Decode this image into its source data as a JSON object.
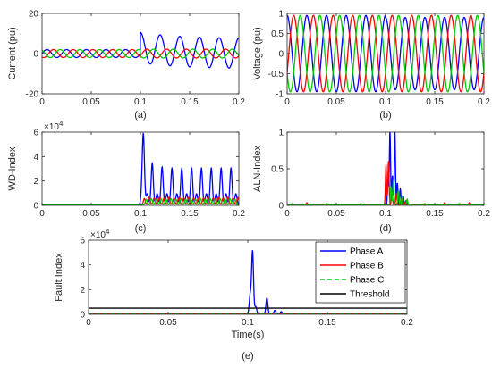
{
  "chart_data": [
    {
      "id": "a",
      "type": "line",
      "caption": "(a)",
      "xlabel": "",
      "ylabel": "Current (pu)",
      "xlim": [
        0,
        0.2
      ],
      "ylim": [
        -20,
        20
      ],
      "xticks": [
        0,
        0.05,
        0.1,
        0.15,
        0.2
      ],
      "yticks": [
        -20,
        0,
        20
      ],
      "xtick_labels": [
        "0",
        "0.05",
        "0.1",
        "0.15",
        "0.2"
      ],
      "ytick_labels": [
        "-20",
        "0",
        "20"
      ],
      "y_exponent": "",
      "series": [
        {
          "color": "#0000ff",
          "pre": {
            "amp": 2,
            "freq": 50,
            "phase": 0
          },
          "post": {
            "start": 0.1,
            "amp": 7.5,
            "freq": 50,
            "phase": 90,
            "offset": 3,
            "offset_decay": 0.04
          }
        },
        {
          "color": "#ff0000",
          "pre": {
            "amp": 2,
            "freq": 50,
            "phase": -120
          },
          "post": {
            "start": 0.1,
            "amp": 2.2,
            "freq": 50,
            "phase": -30,
            "offset": 0
          }
        },
        {
          "color": "#00cc00",
          "pre": {
            "amp": 2,
            "freq": 50,
            "phase": 120
          },
          "post": {
            "start": 0.1,
            "amp": 2.2,
            "freq": 50,
            "phase": 210,
            "offset": 0
          }
        }
      ]
    },
    {
      "id": "b",
      "type": "line",
      "caption": "(b)",
      "xlabel": "",
      "ylabel": "Voltage (pu)",
      "xlim": [
        0,
        0.2
      ],
      "ylim": [
        -1,
        1
      ],
      "xticks": [
        0,
        0.05,
        0.1,
        0.15,
        0.2
      ],
      "yticks": [
        -1,
        -0.5,
        0,
        0.5,
        1
      ],
      "xtick_labels": [
        "0",
        "0.05",
        "0.1",
        "0.15",
        "0.2"
      ],
      "ytick_labels": [
        "-1",
        "-0.5",
        "0",
        "0.5",
        "1"
      ],
      "y_exponent": "",
      "series": [
        {
          "color": "#0000ff",
          "pre": {
            "amp": 0.95,
            "freq": 50,
            "phase": 90
          },
          "post": {
            "start": 0.1,
            "amp": 0.9,
            "freq": 50,
            "phase": 90,
            "offset": 0
          }
        },
        {
          "color": "#ff0000",
          "pre": {
            "amp": 0.95,
            "freq": 50,
            "phase": -30
          },
          "post": {
            "start": 0.1,
            "amp": 0.95,
            "freq": 50,
            "phase": -30,
            "offset": 0
          }
        },
        {
          "color": "#00cc00",
          "pre": {
            "amp": 0.95,
            "freq": 50,
            "phase": 210
          },
          "post": {
            "start": 0.1,
            "amp": 0.95,
            "freq": 50,
            "phase": 210,
            "offset": 0
          }
        }
      ]
    },
    {
      "id": "c",
      "type": "line",
      "caption": "(c)",
      "xlabel": "",
      "ylabel": "WD-Index",
      "xlim": [
        0,
        0.2
      ],
      "ylim": [
        0,
        60000
      ],
      "xticks": [
        0,
        0.05,
        0.1,
        0.15,
        0.2
      ],
      "yticks": [
        0,
        20000,
        40000,
        60000
      ],
      "xtick_labels": [
        "0",
        "0.05",
        "0.1",
        "0.15",
        "0.2"
      ],
      "ytick_labels": [
        "0",
        "2",
        "4",
        "6"
      ],
      "y_exponent": "×10^4",
      "series": [
        {
          "color": "#0000ff",
          "baseline": 500,
          "peaks": [
            [
              0.1015,
              8000
            ],
            [
              0.103,
              55000
            ],
            [
              0.107,
              9000
            ],
            [
              0.112,
              34000
            ],
            [
              0.117,
              9000
            ],
            [
              0.122,
              31000
            ],
            [
              0.127,
              9000
            ],
            [
              0.132,
              30000
            ],
            [
              0.137,
              9000
            ],
            [
              0.142,
              30000
            ],
            [
              0.147,
              9000
            ],
            [
              0.152,
              30000
            ],
            [
              0.157,
              9000
            ],
            [
              0.162,
              30000
            ],
            [
              0.167,
              9000
            ],
            [
              0.172,
              30000
            ],
            [
              0.177,
              9000
            ],
            [
              0.182,
              30000
            ],
            [
              0.187,
              9000
            ],
            [
              0.192,
              30000
            ],
            [
              0.197,
              9000
            ]
          ],
          "width": 0.0011
        },
        {
          "color": "#ff0000",
          "baseline": 500,
          "peaks": [
            [
              0.104,
              5000
            ],
            [
              0.109,
              6000
            ],
            [
              0.114,
              5500
            ],
            [
              0.119,
              6000
            ],
            [
              0.124,
              5500
            ],
            [
              0.129,
              6000
            ],
            [
              0.134,
              5500
            ],
            [
              0.139,
              6000
            ],
            [
              0.144,
              5500
            ],
            [
              0.149,
              6000
            ],
            [
              0.154,
              5500
            ],
            [
              0.159,
              6000
            ],
            [
              0.164,
              5500
            ],
            [
              0.169,
              6000
            ],
            [
              0.174,
              5500
            ],
            [
              0.179,
              6000
            ],
            [
              0.184,
              5500
            ],
            [
              0.189,
              6000
            ],
            [
              0.194,
              5500
            ],
            [
              0.199,
              6000
            ]
          ],
          "width": 0.001
        },
        {
          "color": "#00cc00",
          "baseline": 500,
          "peaks": [
            [
              0.106,
              4500
            ],
            [
              0.111,
              5000
            ],
            [
              0.116,
              4500
            ],
            [
              0.121,
              5000
            ],
            [
              0.126,
              4500
            ],
            [
              0.131,
              5000
            ],
            [
              0.136,
              4500
            ],
            [
              0.141,
              5000
            ],
            [
              0.146,
              4500
            ],
            [
              0.151,
              5000
            ],
            [
              0.156,
              4500
            ],
            [
              0.161,
              5000
            ],
            [
              0.166,
              4500
            ],
            [
              0.171,
              5000
            ],
            [
              0.176,
              4500
            ],
            [
              0.181,
              5000
            ],
            [
              0.186,
              4500
            ],
            [
              0.191,
              5000
            ],
            [
              0.196,
              4500
            ]
          ],
          "width": 0.001
        }
      ]
    },
    {
      "id": "d",
      "type": "line",
      "caption": "(d)",
      "xlabel": "",
      "ylabel": "ALN-Index",
      "xlim": [
        0,
        0.2
      ],
      "ylim": [
        0,
        1
      ],
      "xticks": [
        0,
        0.05,
        0.1,
        0.15,
        0.2
      ],
      "yticks": [
        0,
        0.5,
        1
      ],
      "xtick_labels": [
        "0",
        "0.05",
        "0.1",
        "0.15",
        "0.2"
      ],
      "ytick_labels": [
        "0",
        "0.5",
        "1"
      ],
      "y_exponent": "",
      "series": [
        {
          "color": "#0000ff",
          "baseline": 0.005,
          "peaks": [
            [
              0.1025,
              0.35
            ],
            [
              0.1045,
              1.0
            ],
            [
              0.107,
              0.4
            ],
            [
              0.1095,
              1.0
            ],
            [
              0.112,
              0.3
            ],
            [
              0.115,
              0.22
            ],
            [
              0.118,
              0.12
            ],
            [
              0.121,
              0.06
            ]
          ],
          "width": 0.0006
        },
        {
          "color": "#ff0000",
          "baseline": 0.005,
          "peaks": [
            [
              0.1005,
              0.55
            ],
            [
              0.103,
              0.6
            ],
            [
              0.1065,
              0.18
            ],
            [
              0.111,
              0.15
            ],
            [
              0.116,
              0.08
            ],
            [
              0.02,
              0.03
            ],
            [
              0.12,
              0.04
            ],
            [
              0.16,
              0.03
            ],
            [
              0.185,
              0.03
            ]
          ],
          "width": 0.0006
        },
        {
          "color": "#00cc00",
          "baseline": 0.005,
          "peaks": [
            [
              0.1055,
              0.25
            ],
            [
              0.108,
              0.35
            ],
            [
              0.113,
              0.2
            ],
            [
              0.117,
              0.12
            ],
            [
              0.122,
              0.08
            ],
            [
              0.005,
              0.02
            ],
            [
              0.04,
              0.02
            ],
            [
              0.075,
              0.02
            ],
            [
              0.14,
              0.02
            ],
            [
              0.175,
              0.02
            ]
          ],
          "width": 0.0006
        }
      ]
    },
    {
      "id": "e",
      "type": "line",
      "caption": "(e)",
      "xlabel": "Time(s)",
      "ylabel": "Fault Index",
      "xlim": [
        0,
        0.2
      ],
      "ylim": [
        0,
        60000
      ],
      "xticks": [
        0,
        0.05,
        0.1,
        0.15,
        0.2
      ],
      "yticks": [
        0,
        20000,
        40000,
        60000
      ],
      "xtick_labels": [
        "0",
        "0.05",
        "0.1",
        "0.15",
        "0.2"
      ],
      "ytick_labels": [
        "0",
        "2",
        "4",
        "6"
      ],
      "y_exponent": "×10^4",
      "legend_position": "top-right",
      "series": [
        {
          "name": "Phase A",
          "color": "#0000ff",
          "style": "solid",
          "baseline": 200,
          "peaks": [
            [
              0.1015,
              15000
            ],
            [
              0.103,
              51000
            ],
            [
              0.105,
              6000
            ],
            [
              0.112,
              13000
            ],
            [
              0.117,
              3000
            ],
            [
              0.121,
              2000
            ]
          ],
          "width": 0.0006
        },
        {
          "name": "Phase B",
          "color": "#ff0000",
          "style": "solid",
          "baseline": 200,
          "peaks": [],
          "width": 0.0006
        },
        {
          "name": "Phase C",
          "color": "#00cc00",
          "style": "dashed",
          "baseline": 200,
          "peaks": [],
          "width": 0.0006
        },
        {
          "name": "Threshold",
          "color": "#000000",
          "style": "solid",
          "constant": 5000
        }
      ]
    }
  ]
}
